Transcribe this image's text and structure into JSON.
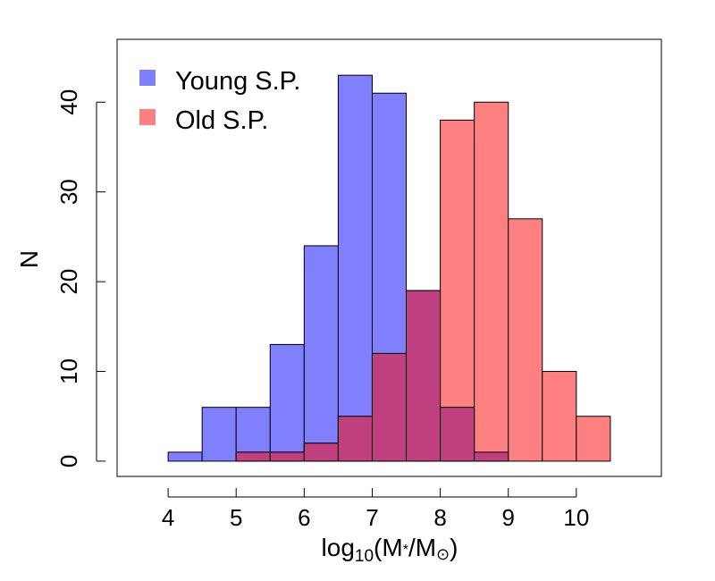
{
  "chart_data": {
    "type": "histogram",
    "title": "",
    "xlabel": "log10(M*/M⊙)",
    "xlabel_parts": {
      "pre": "log",
      "sub": "10",
      "open": "(M",
      "star": "*",
      "slash": "/M",
      "sun": "⊙",
      "close": ")"
    },
    "ylabel": "N",
    "xlim": [
      3.25,
      11.25
    ],
    "ylim": [
      -1.7,
      47
    ],
    "x_ticks": [
      4,
      5,
      6,
      7,
      8,
      9,
      10
    ],
    "x_tick_labels": [
      "4",
      "5",
      "6",
      "7",
      "8",
      "9",
      "10"
    ],
    "y_ticks": [
      0,
      10,
      20,
      30,
      40
    ],
    "y_tick_labels": [
      "0",
      "10",
      "20",
      "30",
      "40"
    ],
    "bin_width": 0.5,
    "legend_position": "top-left",
    "series": [
      {
        "name": "Young S.P.",
        "color": "#8080ff",
        "bins": [
          {
            "x0": 4.0,
            "x1": 4.5,
            "count": 1
          },
          {
            "x0": 4.5,
            "x1": 5.0,
            "count": 6
          },
          {
            "x0": 5.0,
            "x1": 5.5,
            "count": 6
          },
          {
            "x0": 5.5,
            "x1": 6.0,
            "count": 13
          },
          {
            "x0": 6.0,
            "x1": 6.5,
            "count": 24
          },
          {
            "x0": 6.5,
            "x1": 7.0,
            "count": 43
          },
          {
            "x0": 7.0,
            "x1": 7.5,
            "count": 41
          },
          {
            "x0": 7.5,
            "x1": 8.0,
            "count": 19
          },
          {
            "x0": 8.0,
            "x1": 8.5,
            "count": 6
          },
          {
            "x0": 8.5,
            "x1": 9.0,
            "count": 1
          }
        ]
      },
      {
        "name": "Old S.P.",
        "color": "#ff8080",
        "bins": [
          {
            "x0": 5.0,
            "x1": 5.5,
            "count": 1
          },
          {
            "x0": 5.5,
            "x1": 6.0,
            "count": 1
          },
          {
            "x0": 6.0,
            "x1": 6.5,
            "count": 2
          },
          {
            "x0": 6.5,
            "x1": 7.0,
            "count": 5
          },
          {
            "x0": 7.0,
            "x1": 7.5,
            "count": 12
          },
          {
            "x0": 7.5,
            "x1": 8.0,
            "count": 19
          },
          {
            "x0": 8.0,
            "x1": 8.5,
            "count": 38
          },
          {
            "x0": 8.5,
            "x1": 9.0,
            "count": 40
          },
          {
            "x0": 9.0,
            "x1": 9.5,
            "count": 27
          },
          {
            "x0": 9.5,
            "x1": 10.0,
            "count": 10
          },
          {
            "x0": 10.0,
            "x1": 10.5,
            "count": 5
          }
        ]
      }
    ],
    "overlap_color": "#c0407f"
  }
}
